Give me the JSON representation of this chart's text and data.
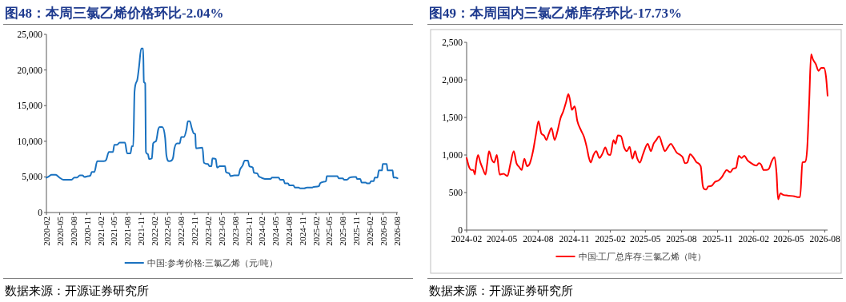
{
  "chart_data": [
    {
      "type": "line",
      "title": "图48：本周三氯乙烯价格环比-2.04%",
      "legend": "bottom",
      "annotations": [
        "数据来源：开源证券研究所"
      ],
      "xlim": [
        "2020-02-01",
        "2026-08-08"
      ],
      "ylim": [
        0,
        25000
      ],
      "xticks": [
        "2020-02",
        "2020-05",
        "2020-08",
        "2020-11",
        "2021-02",
        "2021-05",
        "2021-08",
        "2021-11",
        "2022-02",
        "2022-05",
        "2022-08",
        "2022-11",
        "2023-02",
        "2023-05",
        "2023-08",
        "2023-11",
        "2024-02",
        "2024-05",
        "2024-08",
        "2024-11",
        "2025-02",
        "2025-05",
        "2025-08",
        "2025-11",
        "2026-02",
        "2026-05",
        "2026-08"
      ],
      "yticks": [
        {
          "value": 0,
          "label": "0"
        },
        {
          "value": 5000,
          "label": "5,000"
        },
        {
          "value": 10000,
          "label": "10,000"
        },
        {
          "value": 15000,
          "label": "15,000"
        },
        {
          "value": 20000,
          "label": "20,000"
        },
        {
          "value": 25000,
          "label": "25,000"
        }
      ],
      "x": [
        "2020-02-01",
        "2020-02-19",
        "2020-03-07",
        "2020-04-03",
        "2020-04-30",
        "2020-05-27",
        "2020-07-20",
        "2020-08-08",
        "2020-08-26",
        "2020-09-14",
        "2020-10-02",
        "2020-10-16",
        "2020-11-08",
        "2020-11-25",
        "2020-12-04",
        "2020-12-22",
        "2021-01-10",
        "2021-02-24",
        "2021-03-12",
        "2021-03-30",
        "2021-04-27",
        "2021-05-06",
        "2021-05-24",
        "2021-06-11",
        "2021-07-17",
        "2021-08-01",
        "2021-08-23",
        "2021-09-02",
        "2021-09-11",
        "2021-09-20",
        "2021-10-07",
        "2021-10-20",
        "2021-11-04",
        "2021-11-17",
        "2021-11-22",
        "2021-12-01",
        "2021-12-06",
        "2021-12-19",
        "2021-12-28",
        "2022-01-15",
        "2022-01-24",
        "2022-02-12",
        "2022-02-28",
        "2022-03-09",
        "2022-03-27",
        "2022-04-15",
        "2022-04-24",
        "2022-05-12",
        "2022-05-29",
        "2022-06-08",
        "2022-06-17",
        "2022-07-05",
        "2022-07-23",
        "2022-08-02",
        "2022-08-20",
        "2022-09-07",
        "2022-09-16",
        "2022-09-29",
        "2022-10-13",
        "2022-10-26",
        "2022-11-05",
        "2022-11-10",
        "2022-12-24",
        "2023-01-03",
        "2023-01-30",
        "2023-02-09",
        "2023-02-23",
        "2023-03-01",
        "2023-03-24",
        "2023-04-02",
        "2023-04-20",
        "2023-05-26",
        "2023-06-01",
        "2023-06-23",
        "2023-07-02",
        "2023-07-28",
        "2023-08-25",
        "2023-09-04",
        "2023-09-22",
        "2023-10-06",
        "2023-10-28",
        "2023-11-06",
        "2023-11-30",
        "2023-12-07",
        "2023-12-30",
        "2024-01-09",
        "2024-01-27",
        "2024-02-06",
        "2024-03-03",
        "2024-03-29",
        "2024-04-08",
        "2024-05-23",
        "2024-06-02",
        "2024-06-25",
        "2024-07-04",
        "2024-07-25",
        "2024-08-04",
        "2024-08-31",
        "2024-09-10",
        "2024-10-06",
        "2024-10-15",
        "2024-11-12",
        "2024-11-30",
        "2025-01-06",
        "2025-01-15",
        "2025-02-20",
        "2025-02-28",
        "2025-03-21",
        "2025-04-09",
        "2025-04-14",
        "2025-06-25",
        "2025-07-04",
        "2025-07-31",
        "2025-08-10",
        "2025-08-28",
        "2025-09-15",
        "2025-10-12",
        "2025-10-30",
        "2025-11-05",
        "2025-11-27",
        "2025-12-06",
        "2026-01-03",
        "2026-01-11",
        "2026-01-29",
        "2026-02-08",
        "2026-02-26",
        "2026-03-05",
        "2026-03-23",
        "2026-04-02",
        "2026-04-23",
        "2026-04-28",
        "2026-05-25",
        "2026-05-31",
        "2026-07-04",
        "2026-07-10",
        "2026-07-27",
        "2026-08-06"
      ],
      "series": [
        {
          "name": "中国:参考价格:三氯乙烯（元/吨）",
          "color": "#1a72c0",
          "values": [
            4900,
            5100,
            5300,
            5300,
            4900,
            4600,
            4600,
            4900,
            4900,
            5200,
            5200,
            5000,
            5100,
            5200,
            5700,
            5700,
            7200,
            7200,
            7400,
            8500,
            8500,
            9500,
            9500,
            9800,
            9800,
            8300,
            8300,
            9300,
            9300,
            17000,
            18500,
            20400,
            23000,
            23000,
            18300,
            18100,
            8500,
            8200,
            7500,
            7600,
            9700,
            10000,
            11700,
            12000,
            12000,
            10500,
            8000,
            7200,
            7300,
            7700,
            9000,
            9700,
            9700,
            10600,
            10600,
            11700,
            12800,
            12800,
            11800,
            11100,
            11000,
            9000,
            9100,
            7000,
            6800,
            6500,
            6500,
            7600,
            7500,
            6300,
            6500,
            6500,
            5700,
            5500,
            5100,
            5200,
            5200,
            6000,
            6600,
            7300,
            7300,
            6500,
            6300,
            5600,
            5500,
            5100,
            4900,
            4800,
            4700,
            4700,
            4900,
            4900,
            4600,
            4600,
            4100,
            4100,
            3800,
            3800,
            3500,
            3500,
            3400,
            3400,
            3500,
            3500,
            3600,
            3700,
            4100,
            4300,
            4400,
            5100,
            5100,
            4800,
            4800,
            4600,
            4600,
            4900,
            5000,
            5000,
            4700,
            4700,
            4200,
            4200,
            4100,
            4100,
            4400,
            4400,
            4900,
            4900,
            5900,
            5900,
            6800,
            6800,
            5900,
            5900,
            4900,
            4900,
            4800
          ]
        }
      ]
    },
    {
      "type": "line",
      "title": "图49：本周国内三氯乙烯库存环比-17.73%",
      "legend": "bottom",
      "annotations": [
        "数据来源：开源证券研究所"
      ],
      "xlim": [
        "2024-02-01",
        "2026-08-08"
      ],
      "ylim": [
        0,
        2500
      ],
      "xticks": [
        "2024-02",
        "2024-05",
        "2024-08",
        "2024-11",
        "2025-02",
        "2025-05",
        "2025-08",
        "2025-11",
        "2026-02",
        "2026-05",
        "2026-08"
      ],
      "yticks": [
        {
          "value": 0,
          "label": "0"
        },
        {
          "value": 500,
          "label": "500"
        },
        {
          "value": 1000,
          "label": "1,000"
        },
        {
          "value": 1500,
          "label": "1,500"
        },
        {
          "value": 2000,
          "label": "2,000"
        },
        {
          "value": 2500,
          "label": "2,500"
        }
      ],
      "x": [
        "2024-02-01",
        "2024-02-08",
        "2024-02-13",
        "2024-02-18",
        "2024-02-22",
        "2024-02-25",
        "2024-03-01",
        "2024-03-07",
        "2024-03-13",
        "2024-03-20",
        "2024-03-24",
        "2024-03-29",
        "2024-04-05",
        "2024-04-11",
        "2024-04-18",
        "2024-04-25",
        "2024-05-05",
        "2024-05-15",
        "2024-05-22",
        "2024-05-31",
        "2024-06-07",
        "2024-06-14",
        "2024-06-20",
        "2024-06-27",
        "2024-07-04",
        "2024-07-11",
        "2024-07-19",
        "2024-07-26",
        "2024-08-02",
        "2024-08-09",
        "2024-08-16",
        "2024-08-22",
        "2024-08-28",
        "2024-09-04",
        "2024-09-12",
        "2024-09-19",
        "2024-09-27",
        "2024-10-04",
        "2024-10-11",
        "2024-10-17",
        "2024-10-21",
        "2024-10-26",
        "2024-11-02",
        "2024-11-09",
        "2024-11-18",
        "2024-11-26",
        "2024-12-03",
        "2024-12-08",
        "2024-12-13",
        "2024-12-20",
        "2024-12-27",
        "2025-01-04",
        "2025-01-12",
        "2025-01-19",
        "2025-01-26",
        "2025-02-01",
        "2025-02-09",
        "2025-02-14",
        "2025-02-20",
        "2025-02-28",
        "2025-03-08",
        "2025-03-15",
        "2025-03-22",
        "2025-03-29",
        "2025-04-05",
        "2025-04-10",
        "2025-04-17",
        "2025-04-25",
        "2025-05-07",
        "2025-05-15",
        "2025-05-22",
        "2025-05-29",
        "2025-06-05",
        "2025-06-14",
        "2025-06-20",
        "2025-06-27",
        "2025-07-05",
        "2025-07-12",
        "2025-07-20",
        "2025-07-29",
        "2025-08-04",
        "2025-08-10",
        "2025-08-16",
        "2025-08-23",
        "2025-08-31",
        "2025-09-09",
        "2025-09-19",
        "2025-09-24",
        "2025-09-27",
        "2025-10-03",
        "2025-10-08",
        "2025-10-17",
        "2025-10-25",
        "2025-11-03",
        "2025-11-11",
        "2025-11-18",
        "2025-11-24",
        "2025-12-03",
        "2025-12-11",
        "2025-12-18",
        "2025-12-25",
        "2026-01-01",
        "2026-01-08",
        "2026-01-16",
        "2026-01-23",
        "2026-02-01",
        "2026-02-08",
        "2026-02-14",
        "2026-02-20",
        "2026-02-26",
        "2026-03-05",
        "2026-03-12",
        "2026-03-19",
        "2026-03-26",
        "2026-03-31",
        "2026-04-04",
        "2026-04-10",
        "2026-04-17",
        "2026-04-28",
        "2026-05-16",
        "2026-05-23",
        "2026-05-30",
        "2026-06-05",
        "2026-06-12",
        "2026-06-17",
        "2026-06-22",
        "2026-06-27",
        "2026-07-02",
        "2026-07-09",
        "2026-07-16",
        "2026-07-23",
        "2026-07-30",
        "2026-08-04",
        "2026-08-08"
      ],
      "series": [
        {
          "name": "中国:工厂总库存:三氯乙烯（吨）",
          "color": "#ff0000",
          "values": [
            960,
            830,
            800,
            800,
            740,
            870,
            1000,
            900,
            820,
            740,
            870,
            1050,
            940,
            900,
            1000,
            740,
            750,
            720,
            870,
            1050,
            890,
            840,
            800,
            950,
            850,
            890,
            1050,
            1260,
            1450,
            1290,
            1260,
            1200,
            1280,
            1360,
            1200,
            1310,
            1490,
            1580,
            1700,
            1810,
            1740,
            1600,
            1650,
            1450,
            1330,
            1240,
            1100,
            970,
            900,
            1000,
            1050,
            960,
            1020,
            1100,
            1010,
            1000,
            1200,
            1150,
            1260,
            1250,
            1100,
            1050,
            1110,
            950,
            1050,
            960,
            900,
            1010,
            1150,
            1050,
            1150,
            1200,
            1250,
            1120,
            1050,
            1100,
            1150,
            1100,
            1030,
            1000,
            970,
            890,
            900,
            1010,
            970,
            900,
            850,
            600,
            550,
            540,
            580,
            590,
            640,
            660,
            700,
            760,
            800,
            770,
            820,
            830,
            990,
            960,
            990,
            930,
            900,
            870,
            860,
            890,
            870,
            800,
            800,
            820,
            920,
            970,
            760,
            410,
            490,
            470,
            460,
            450,
            440,
            440,
            900,
            910,
            1080,
            1680,
            2340,
            2270,
            2210,
            2120,
            2160,
            2160,
            2040,
            1790
          ]
        }
      ]
    }
  ]
}
